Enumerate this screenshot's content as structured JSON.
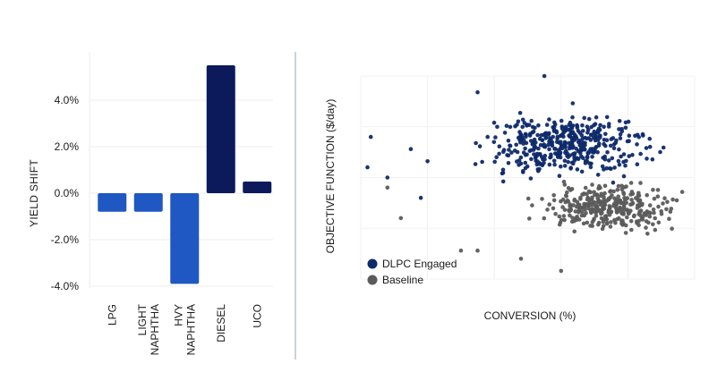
{
  "chart_data": [
    {
      "type": "bar",
      "ylabel": "YIELD SHIFT",
      "ylim": [
        -4.0,
        5.5
      ],
      "yticks": [
        "4.0%",
        "2.0%",
        "0.0%",
        "-2.0%",
        "-4.0%"
      ],
      "ytick_values": [
        4.0,
        2.0,
        0.0,
        -2.0,
        -4.0
      ],
      "grid": true,
      "categories": [
        {
          "lines": [
            "LPG"
          ]
        },
        {
          "lines": [
            "LIGHT",
            "NAPHTHA"
          ]
        },
        {
          "lines": [
            "HVY",
            "NAPHTHA"
          ]
        },
        {
          "lines": [
            "DIESEL"
          ]
        },
        {
          "lines": [
            "UCO"
          ]
        }
      ],
      "values": [
        -0.8,
        -0.8,
        -3.9,
        5.5,
        0.5
      ],
      "colors": [
        "#1f57c3",
        "#1f57c3",
        "#1f57c3",
        "#0c1a5c",
        "#0c1a5c"
      ]
    },
    {
      "type": "scatter",
      "xlabel": "CONVERSION (%)",
      "ylabel": "OBJECTIVE FUNCTION ($/day)",
      "xlim": [
        0,
        100
      ],
      "ylim": [
        0,
        100
      ],
      "grid": true,
      "legend": "bottom-left",
      "series": [
        {
          "name": "DLPC Engaged",
          "color": "#0f2a6b",
          "count": 420,
          "center": [
            62,
            66
          ],
          "spread": [
            22,
            14
          ],
          "extra": [
            [
              2,
              55
            ],
            [
              3,
              70
            ],
            [
              8,
              50
            ],
            [
              15,
              64
            ],
            [
              18,
              40
            ],
            [
              20,
              58
            ],
            [
              35,
              92
            ],
            [
              38,
              70
            ],
            [
              55,
              100
            ]
          ]
        },
        {
          "name": "Baseline",
          "color": "#5b5b5b",
          "count": 330,
          "center": [
            74,
            35
          ],
          "spread": [
            18,
            10
          ],
          "extra": [
            [
              8,
              45
            ],
            [
              12,
              30
            ],
            [
              30,
              14
            ],
            [
              35,
              14
            ],
            [
              48,
              10
            ],
            [
              60,
              4
            ]
          ]
        }
      ]
    }
  ]
}
